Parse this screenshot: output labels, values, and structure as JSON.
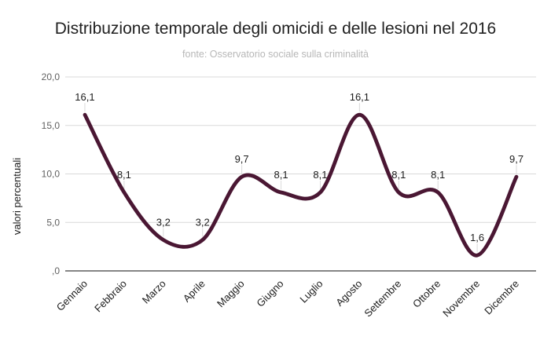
{
  "chart_data": {
    "type": "line",
    "smooth": true,
    "title": "Distribuzione temporale degli omicidi e delle lesioni nel 2016",
    "subtitle": "fonte: Osservatorio sociale sulla criminalità",
    "categories": [
      "Gennaio",
      "Febbraio",
      "Marzo",
      "Aprile",
      "Maggio",
      "Giugno",
      "Luglio",
      "Agosto",
      "Settembre",
      "Ottobre",
      "Novembre",
      "Dicembre"
    ],
    "series": [
      {
        "name": "valori percentuali",
        "values": [
          16.1,
          8.1,
          3.2,
          3.2,
          9.7,
          8.1,
          8.1,
          16.1,
          8.1,
          8.1,
          1.6,
          9.7
        ],
        "data_labels": [
          "16,1",
          "8,1",
          "3,2",
          "3,2",
          "9,7",
          "8,1",
          "8,1",
          "16,1",
          "8,1",
          "8,1",
          "1,6",
          "9,7"
        ]
      }
    ],
    "xlabel": "",
    "ylabel": "valori percentuali",
    "ylim": [
      0,
      20
    ],
    "y_ticks": [
      {
        "value": 0,
        "label": ",0"
      },
      {
        "value": 5,
        "label": "5,0"
      },
      {
        "value": 10,
        "label": "10,0"
      },
      {
        "value": 15,
        "label": "15,0"
      },
      {
        "value": 20,
        "label": "20,0"
      }
    ],
    "grid": true,
    "legend": "none",
    "colors": {
      "line": "#4a1733",
      "grid": "#d9d9d9",
      "axis": "#3c3c3c",
      "title": "#212121",
      "subtitle": "#b7b7b7",
      "tick_labels": "#616161",
      "category_labels": "#1c1c1c",
      "data_labels": "#1c1c1c",
      "axis_title": "#1c1c1c",
      "leader_line": "#dadada",
      "background": "#ffffff"
    }
  }
}
